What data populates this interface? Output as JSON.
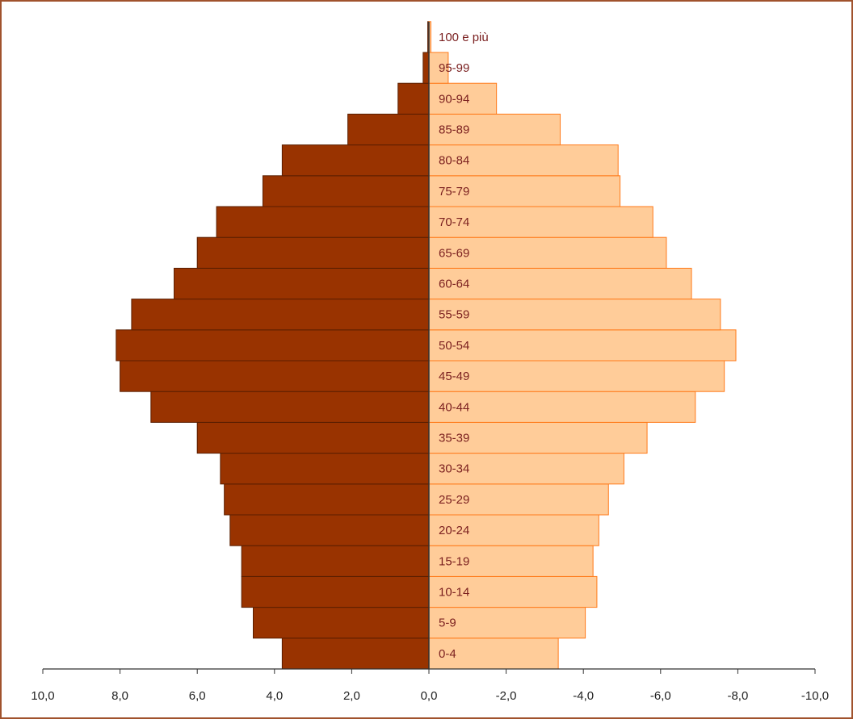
{
  "chart_data": {
    "type": "bar",
    "orientation": "horizontal",
    "layout": "population-pyramid",
    "title": "",
    "xlabel": "",
    "ylabel": "",
    "xlim": [
      10,
      -10
    ],
    "x_ticks": [
      "10,0",
      "8,0",
      "6,0",
      "4,0",
      "2,0",
      "0,0",
      "-2,0",
      "-4,0",
      "-6,0",
      "-8,0",
      "-10,0"
    ],
    "x_tick_values": [
      10,
      8,
      6,
      4,
      2,
      0,
      -2,
      -4,
      -6,
      -8,
      -10
    ],
    "grid": false,
    "legend": "none",
    "categories": [
      "0-4",
      "5-9",
      "10-14",
      "15-19",
      "20-24",
      "25-29",
      "30-34",
      "35-39",
      "40-44",
      "45-49",
      "50-54",
      "55-59",
      "60-64",
      "65-69",
      "70-74",
      "75-79",
      "80-84",
      "85-89",
      "90-94",
      "95-99",
      "100 e più"
    ],
    "series": [
      {
        "side": "left",
        "color": "#993300",
        "values": [
          3.8,
          4.55,
          4.85,
          4.85,
          5.15,
          5.3,
          5.4,
          6.0,
          7.2,
          8.0,
          8.1,
          7.7,
          6.6,
          6.0,
          5.5,
          4.3,
          3.8,
          2.1,
          0.8,
          0.15,
          0.03
        ]
      },
      {
        "side": "right",
        "color": "#ffcc99",
        "values": [
          -3.35,
          -4.05,
          -4.35,
          -4.25,
          -4.4,
          -4.65,
          -5.05,
          -5.65,
          -6.9,
          -7.65,
          -7.95,
          -7.55,
          -6.8,
          -6.15,
          -5.8,
          -4.95,
          -4.9,
          -3.4,
          -1.75,
          -0.5,
          -0.05
        ]
      }
    ]
  },
  "colors": {
    "left_bar": "#993300",
    "left_stroke": "#5a1e00",
    "right_bar": "#ffcc99",
    "right_stroke": "#ff7a1a",
    "label_text": "#7a1f1f",
    "axis": "#333333",
    "frame": "#a0522d"
  }
}
